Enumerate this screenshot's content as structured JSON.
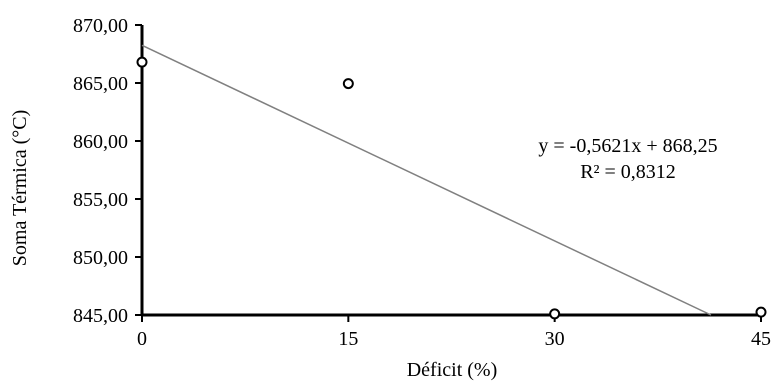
{
  "chart_data": {
    "type": "scatter",
    "title": "",
    "xlabel": "Déficit (%)",
    "ylabel": "Soma Térmica (°C)",
    "xlim": [
      0,
      45
    ],
    "ylim": [
      845,
      870
    ],
    "x_ticks": [
      0,
      15,
      30,
      45
    ],
    "x_tick_labels": [
      "0",
      "15",
      "30",
      "45"
    ],
    "y_ticks": [
      845,
      850,
      855,
      860,
      865,
      870
    ],
    "y_tick_labels": [
      "845,00",
      "850,00",
      "855,00",
      "860,00",
      "865,00",
      "870,00"
    ],
    "grid": false,
    "series": [
      {
        "marker": "open-circle",
        "color": "#000000",
        "x": [
          0,
          15,
          30,
          45
        ],
        "y": [
          866.8,
          864.95,
          845.1,
          845.25
        ]
      }
    ],
    "trendline": {
      "type": "linear",
      "slope": -0.5621,
      "intercept": 868.25,
      "color": "#808080",
      "equation_label": "y = -0,5621x + 868,25",
      "r2_label": "R² = 0,8312"
    }
  }
}
